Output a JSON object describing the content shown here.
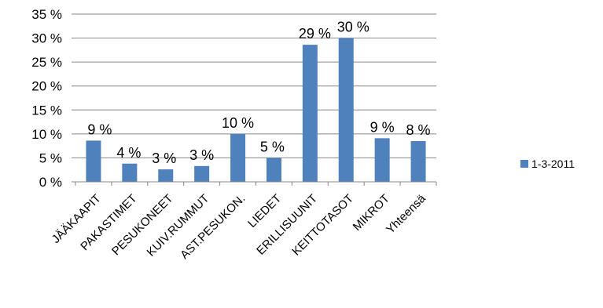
{
  "chart_data": {
    "type": "bar",
    "categories": [
      "JÄÄKAAPIT",
      "PAKASTIMET",
      "PESUKONEET",
      "KUIV.RUMMUT",
      "AST.PESUKON.",
      "LIEDET",
      "ERILLISUUNIT",
      "KEITTOTASOT",
      "MIKROT",
      "Yhteensä"
    ],
    "series": [
      {
        "name": "1-3-2011",
        "values": [
          8.6,
          3.8,
          2.6,
          3.3,
          10,
          5,
          28.6,
          30,
          9.1,
          8.5
        ],
        "data_labels": [
          "9 %",
          "4 %",
          "3 %",
          "3 %",
          "10 %",
          "5 %",
          "29 %",
          "30 %",
          "9 %",
          "8 %"
        ]
      }
    ],
    "y_ticks": [
      "0 %",
      "5 %",
      "10 %",
      "15 %",
      "20 %",
      "25 %",
      "30 %",
      "35 %"
    ],
    "y_tick_values": [
      0,
      5,
      10,
      15,
      20,
      25,
      30,
      35
    ],
    "ylim": [
      0,
      35
    ],
    "grid": true,
    "legend": "right",
    "colors": {
      "bar": "#4f81bd",
      "grid": "#868686",
      "axis": "#868686"
    }
  }
}
